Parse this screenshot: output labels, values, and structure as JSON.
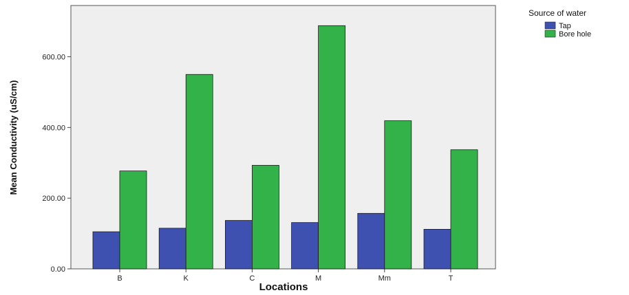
{
  "chart_data": {
    "type": "bar",
    "categories": [
      "B",
      "K",
      "C",
      "M",
      "Mm",
      "T"
    ],
    "series": [
      {
        "name": "Tap",
        "values": [
          105,
          115,
          137,
          131,
          157,
          112
        ],
        "color": "#3f51b0"
      },
      {
        "name": "Bore hole",
        "values": [
          277,
          550,
          293,
          688,
          419,
          337
        ],
        "color": "#33b24a"
      }
    ],
    "title": "",
    "xlabel": "Locations",
    "ylabel": "Mean Conductivity (uS/cm)",
    "ylim": [
      0,
      745
    ],
    "yticks": [
      0,
      200,
      400,
      600
    ],
    "ytick_labels": [
      "0.00",
      "200.00",
      "400.00",
      "600.00"
    ],
    "grid": false,
    "legend": {
      "title": "Source of water",
      "placement": "right, outside plot"
    },
    "plot_background": "#efefef"
  }
}
